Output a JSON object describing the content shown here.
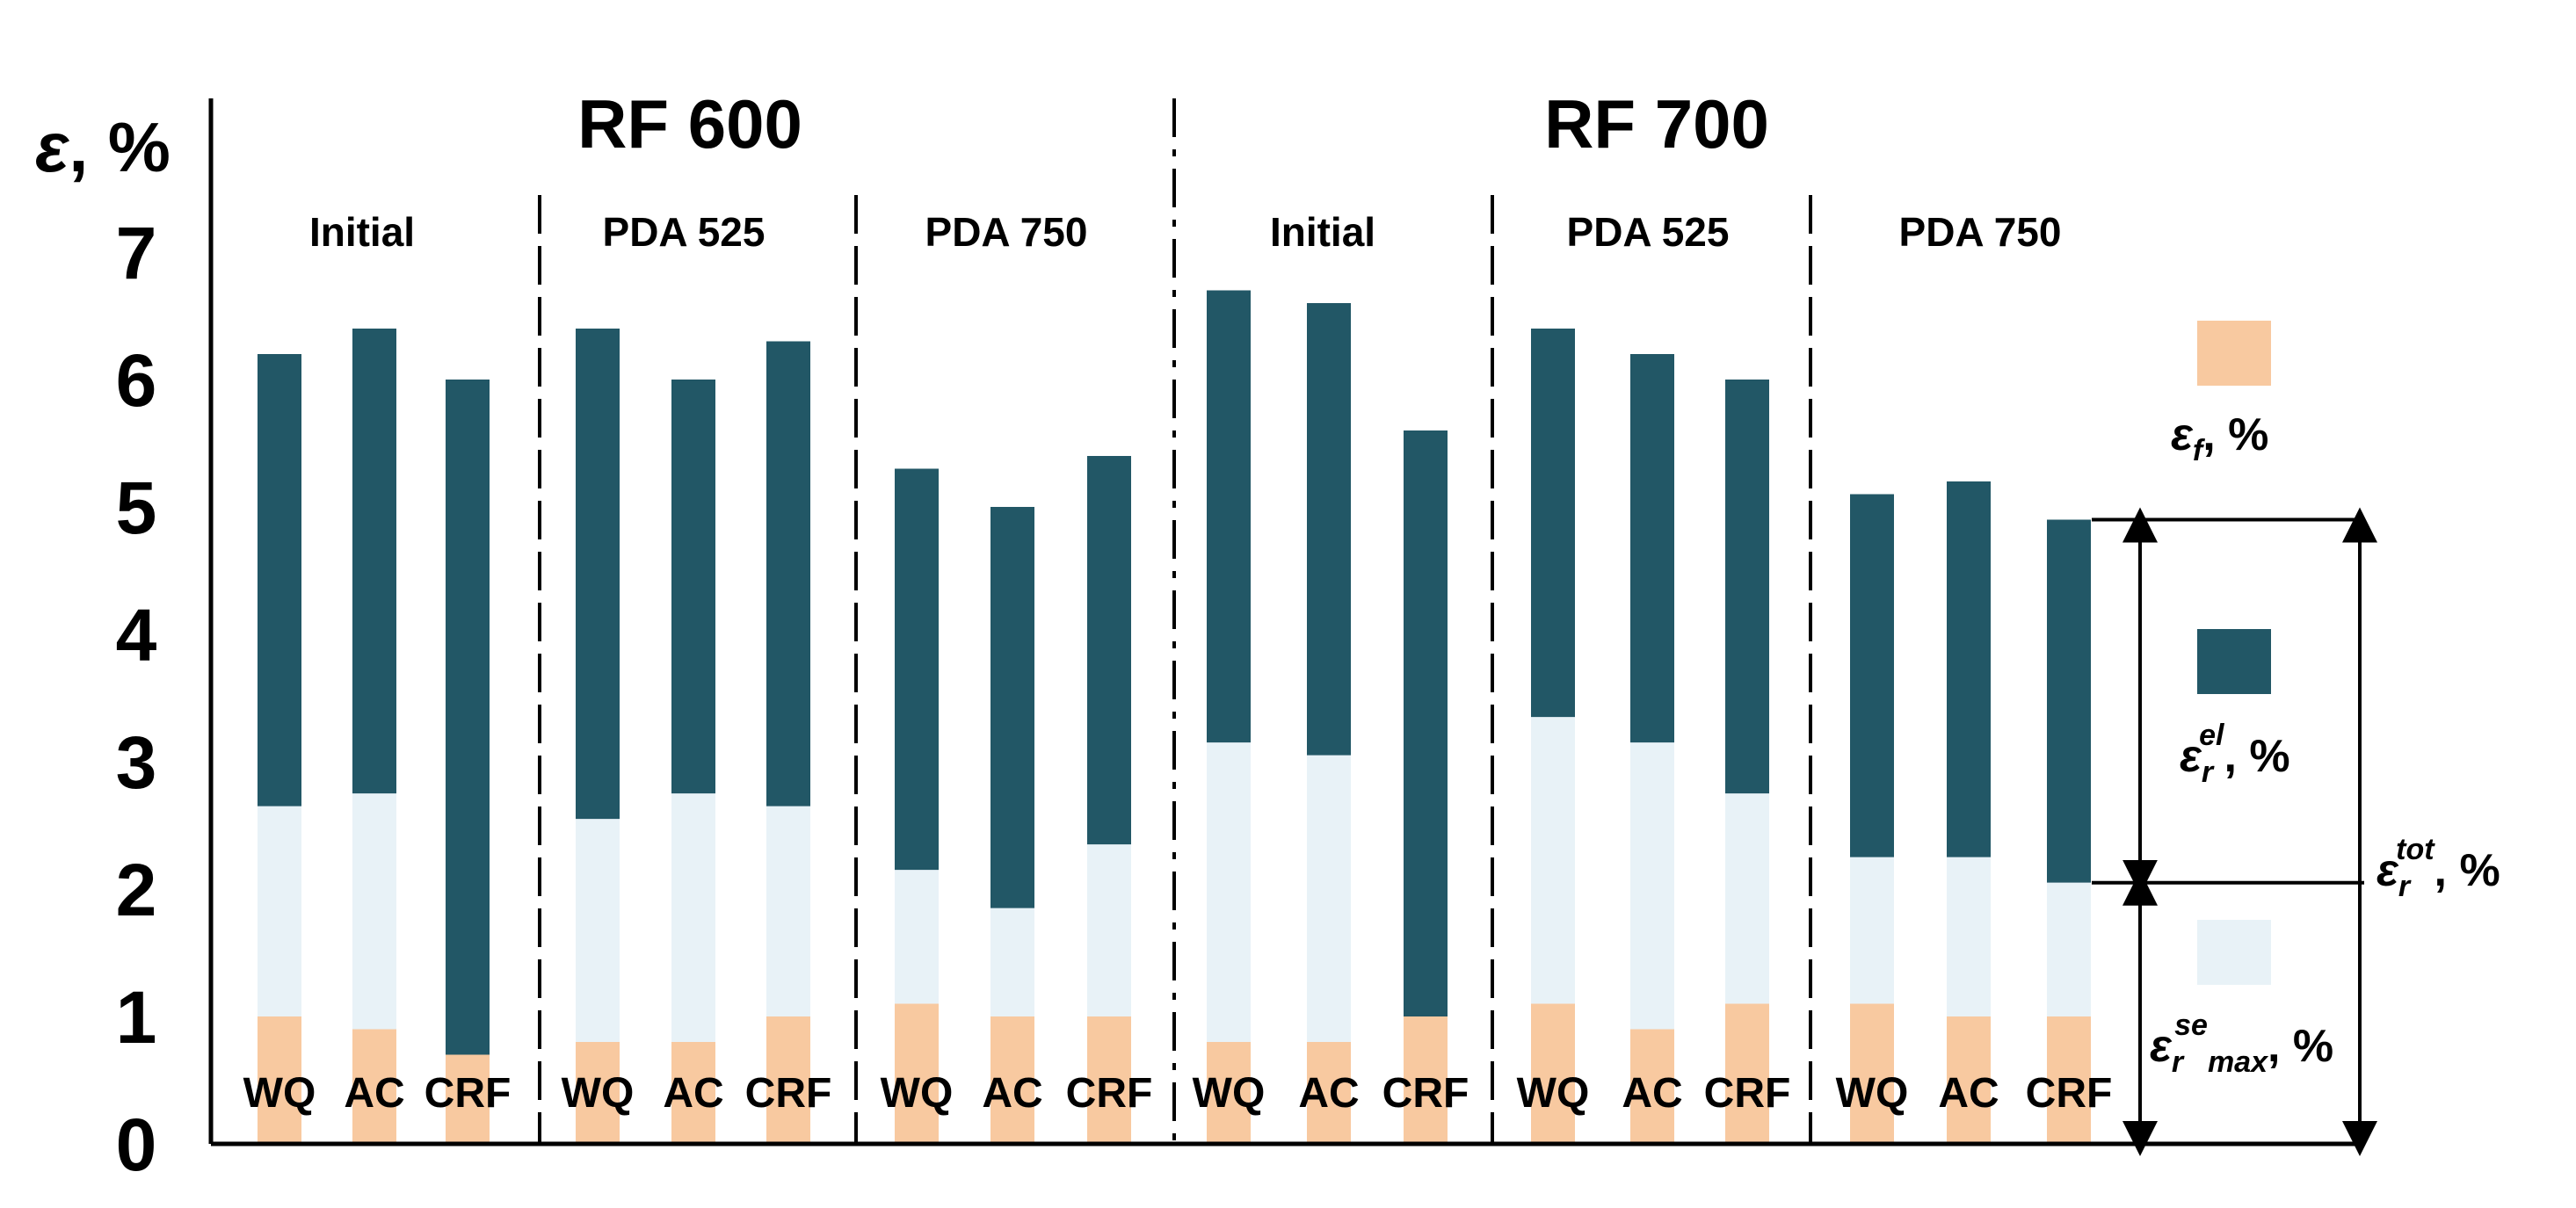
{
  "chart_data": {
    "type": "bar",
    "stacked": true,
    "ylabel_symbol": "ε",
    "ylabel_unit": ", %",
    "ylim": [
      0,
      8
    ],
    "yticks": [
      "0",
      "1",
      "2",
      "3",
      "4",
      "5",
      "6",
      "7"
    ],
    "sections": [
      {
        "title": "RF 600",
        "groups": [
          {
            "name": "Initial",
            "categories": [
              "WQ",
              "AC",
              "CRF"
            ],
            "ef": [
              1.0,
              0.9,
              0.7
            ],
            "ese": [
              2.65,
              2.75,
              0.65
            ],
            "etot": [
              6.2,
              6.4,
              6.0
            ]
          },
          {
            "name": "PDA 525",
            "categories": [
              "WQ",
              "AC",
              "CRF"
            ],
            "ef": [
              0.8,
              0.8,
              1.0
            ],
            "ese": [
              2.55,
              2.75,
              2.65
            ],
            "etot": [
              6.4,
              6.0,
              6.3
            ]
          },
          {
            "name": "PDA 750",
            "categories": [
              "WQ",
              "AC",
              "CRF"
            ],
            "ef": [
              1.1,
              1.0,
              1.0
            ],
            "ese": [
              2.15,
              1.85,
              2.35
            ],
            "etot": [
              5.3,
              5.0,
              5.4
            ]
          }
        ]
      },
      {
        "title": "RF 700",
        "groups": [
          {
            "name": "Initial",
            "categories": [
              "WQ",
              "AC",
              "CRF"
            ],
            "ef": [
              0.8,
              0.8,
              1.0
            ],
            "ese": [
              3.15,
              3.05,
              0.25
            ],
            "etot": [
              6.7,
              6.6,
              5.6
            ]
          },
          {
            "name": "PDA 525",
            "categories": [
              "WQ",
              "AC",
              "CRF"
            ],
            "ef": [
              1.1,
              0.9,
              1.1
            ],
            "ese": [
              3.35,
              3.15,
              2.75
            ],
            "etot": [
              6.4,
              6.2,
              6.0
            ]
          },
          {
            "name": "PDA 750",
            "categories": [
              "WQ",
              "AC",
              "CRF"
            ],
            "ef": [
              1.1,
              1.0,
              1.0
            ],
            "ese": [
              2.25,
              2.25,
              2.05
            ],
            "etot": [
              5.1,
              5.2,
              4.9
            ]
          }
        ]
      }
    ],
    "legend": [
      {
        "key": "ef",
        "symbol": "ε",
        "sub": "f",
        "sup": "",
        "unit": ", %",
        "color": "#f8c9a0"
      },
      {
        "key": "eel",
        "symbol": "ε",
        "sub": "r",
        "sup": "el",
        "unit": ", %",
        "color": "#225766"
      },
      {
        "key": "ese",
        "symbol": "ε",
        "sub": "r",
        "sup": "se",
        "sub2": "max",
        "unit": ", %",
        "color": "#e8f2f7"
      }
    ],
    "total_label": {
      "symbol": "ε",
      "sub": "r",
      "sup": "tot",
      "unit": ", %"
    },
    "colors": {
      "ef": "#f8c9a0",
      "ese": "#e8f2f7",
      "eel": "#225766",
      "axis": "#000000"
    }
  }
}
